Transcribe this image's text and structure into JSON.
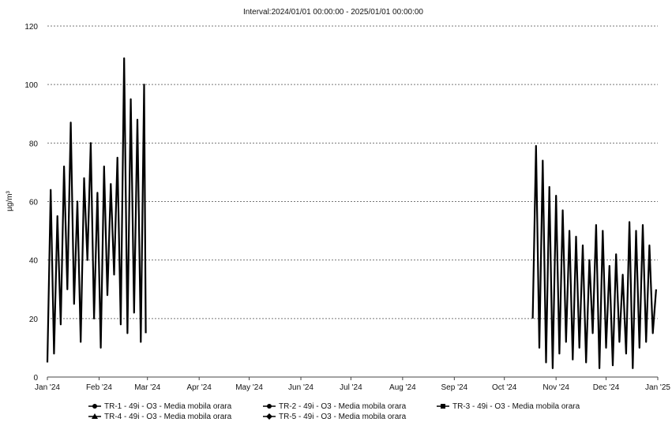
{
  "chart_data": {
    "type": "line",
    "title": "Interval:2024/01/01 00:00:00 - 2025/01/01 00:00:00",
    "ylabel": "µg/m³",
    "xlabel": "",
    "ylim": [
      0,
      120
    ],
    "yticks": [
      0,
      20,
      40,
      60,
      80,
      100,
      120
    ],
    "xlim": [
      "2024-01-01",
      "2025-01-01"
    ],
    "xticks": [
      {
        "date": "2024-01-01",
        "label": "Jan '24"
      },
      {
        "date": "2024-02-01",
        "label": "Feb '24"
      },
      {
        "date": "2024-03-01",
        "label": "Mar '24"
      },
      {
        "date": "2024-04-01",
        "label": "Apr '24"
      },
      {
        "date": "2024-05-01",
        "label": "May '24"
      },
      {
        "date": "2024-06-01",
        "label": "Jun '24"
      },
      {
        "date": "2024-07-01",
        "label": "Jul '24"
      },
      {
        "date": "2024-08-01",
        "label": "Aug '24"
      },
      {
        "date": "2024-09-01",
        "label": "Sep '24"
      },
      {
        "date": "2024-10-01",
        "label": "Oct '24"
      },
      {
        "date": "2024-11-01",
        "label": "Nov '24"
      },
      {
        "date": "2024-12-01",
        "label": "Dec '24"
      },
      {
        "date": "2025-01-01",
        "label": "Jan '25"
      }
    ],
    "grid": true,
    "legend_position": "bottom",
    "series": [
      {
        "name": "TR-1 - 49i - O3 - Media mobila orara",
        "marker": "circle",
        "x": [
          "2024-01-01",
          "2024-01-03",
          "2024-01-05",
          "2024-01-07",
          "2024-01-09",
          "2024-01-11",
          "2024-01-13",
          "2024-01-15",
          "2024-01-17",
          "2024-01-19",
          "2024-01-21",
          "2024-01-23",
          "2024-01-25",
          "2024-01-27",
          "2024-01-29",
          "2024-01-31",
          "2024-02-02",
          "2024-02-04",
          "2024-02-06",
          "2024-02-08",
          "2024-02-10",
          "2024-02-12",
          "2024-02-14",
          "2024-02-16",
          "2024-02-18",
          "2024-02-20",
          "2024-02-22",
          "2024-02-24",
          "2024-02-26",
          "2024-02-28",
          "2024-02-29"
        ],
        "y": [
          5,
          64,
          8,
          55,
          18,
          72,
          30,
          87,
          25,
          60,
          12,
          68,
          40,
          80,
          20,
          63,
          10,
          72,
          28,
          66,
          35,
          75,
          18,
          109,
          15,
          95,
          22,
          88,
          12,
          100,
          15
        ]
      },
      {
        "name": "TR-2 - 49i - O3 - Media mobila orara",
        "marker": "circle",
        "x": [],
        "y": []
      },
      {
        "name": "TR-3 - 49i - O3 - Media mobila orara",
        "marker": "square",
        "x": [
          "2024-10-18",
          "2024-10-20",
          "2024-10-22",
          "2024-10-24",
          "2024-10-26",
          "2024-10-28",
          "2024-10-30",
          "2024-11-01",
          "2024-11-03",
          "2024-11-05",
          "2024-11-07",
          "2024-11-09",
          "2024-11-11",
          "2024-11-13",
          "2024-11-15",
          "2024-11-17",
          "2024-11-19",
          "2024-11-21",
          "2024-11-23",
          "2024-11-25",
          "2024-11-27",
          "2024-11-29",
          "2024-12-01",
          "2024-12-03",
          "2024-12-05",
          "2024-12-07",
          "2024-12-09",
          "2024-12-11",
          "2024-12-13",
          "2024-12-15",
          "2024-12-17",
          "2024-12-19",
          "2024-12-21",
          "2024-12-23",
          "2024-12-25",
          "2024-12-27",
          "2024-12-29",
          "2024-12-31"
        ],
        "y": [
          20,
          79,
          10,
          74,
          5,
          65,
          3,
          62,
          8,
          57,
          12,
          50,
          6,
          48,
          10,
          45,
          5,
          40,
          15,
          52,
          3,
          50,
          10,
          38,
          4,
          42,
          12,
          35,
          8,
          53,
          3,
          50,
          10,
          52,
          12,
          45,
          15,
          30
        ]
      },
      {
        "name": "TR-4 - 49i - O3 - Media mobila orara",
        "marker": "triangle",
        "x": [],
        "y": []
      },
      {
        "name": "TR-5 - 49i - O3 - Media mobila orara",
        "marker": "diamond",
        "x": [],
        "y": []
      }
    ]
  }
}
